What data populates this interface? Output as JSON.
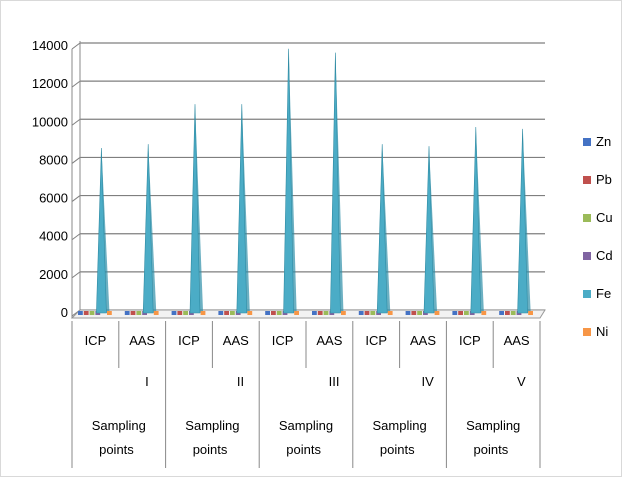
{
  "chart_data": {
    "type": "bar",
    "title": "",
    "xlabel": "",
    "ylabel": "",
    "ylim": [
      0,
      14000
    ],
    "y_ticks": [
      0,
      2000,
      4000,
      6000,
      8000,
      10000,
      12000,
      14000
    ],
    "grid": true,
    "legend_position": "right",
    "groups": [
      {
        "label": "I",
        "group_label": "Sampling points",
        "methods": [
          "ICP",
          "AAS"
        ]
      },
      {
        "label": "II",
        "group_label": "Sampling points",
        "methods": [
          "ICP",
          "AAS"
        ]
      },
      {
        "label": "III",
        "group_label": "Sampling points",
        "methods": [
          "ICP",
          "AAS"
        ]
      },
      {
        "label": "IV",
        "group_label": "Sampling points",
        "methods": [
          "ICP",
          "AAS"
        ]
      },
      {
        "label": "V",
        "group_label": "Sampling points",
        "methods": [
          "ICP",
          "AAS"
        ]
      }
    ],
    "categories": [
      "ICP",
      "AAS",
      "ICP",
      "AAS",
      "ICP",
      "AAS",
      "ICP",
      "AAS",
      "ICP",
      "AAS"
    ],
    "series": [
      {
        "name": "Zn",
        "color": "#4472C4",
        "values": [
          90,
          85,
          110,
          105,
          130,
          125,
          95,
          92,
          100,
          98
        ]
      },
      {
        "name": "Pb",
        "color": "#C0504D",
        "values": [
          15,
          14,
          18,
          17,
          22,
          20,
          16,
          15,
          17,
          16
        ]
      },
      {
        "name": "Cu",
        "color": "#9BBB59",
        "values": [
          40,
          38,
          50,
          48,
          60,
          57,
          42,
          41,
          45,
          44
        ]
      },
      {
        "name": "Cd",
        "color": "#8064A2",
        "values": [
          5,
          5,
          6,
          6,
          7,
          7,
          5,
          5,
          6,
          6
        ]
      },
      {
        "name": "Fe",
        "color": "#4BACC6",
        "values": [
          8600,
          8800,
          10900,
          10900,
          13800,
          13600,
          8800,
          8700,
          9700,
          9600
        ]
      },
      {
        "name": "Ni",
        "color": "#F79646",
        "values": [
          25,
          24,
          30,
          29,
          36,
          35,
          26,
          25,
          28,
          27
        ]
      }
    ]
  }
}
